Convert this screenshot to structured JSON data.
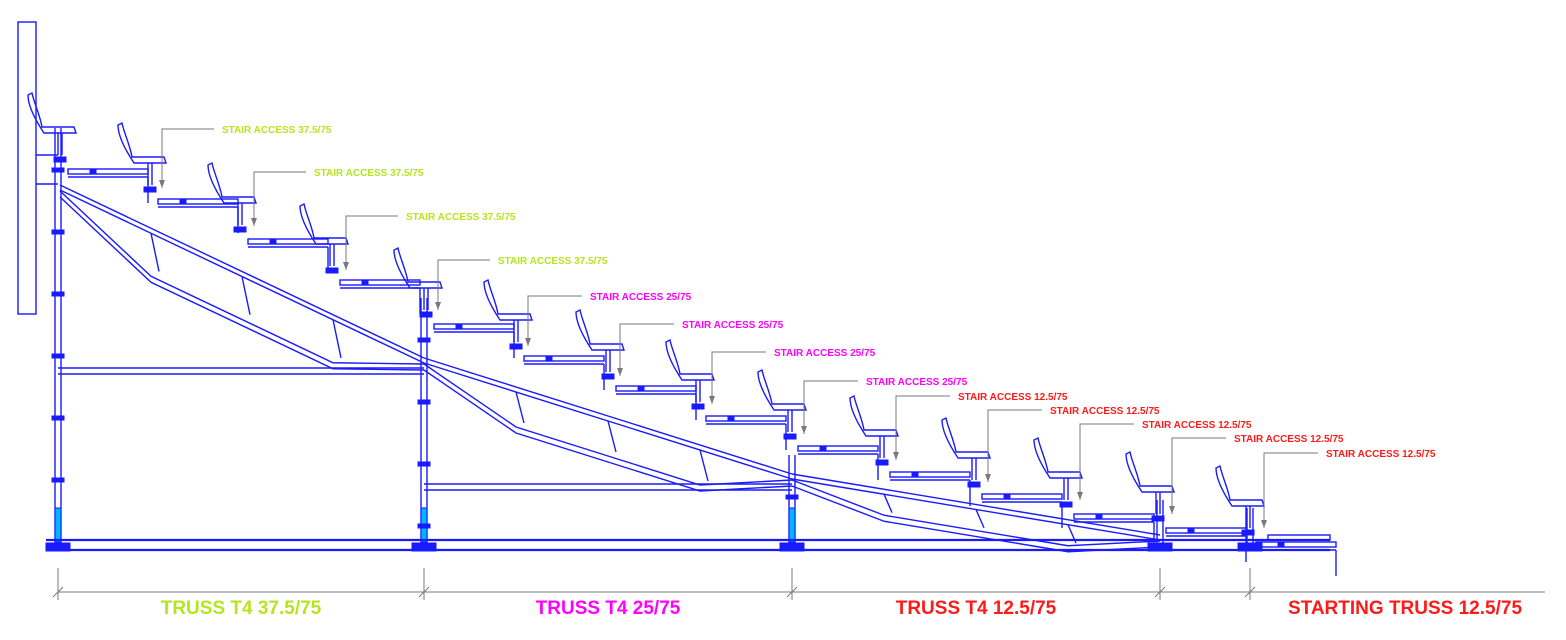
{
  "colors": {
    "green": "#b5e61d",
    "magenta": "#ff00ff",
    "red": "#ff1a1a",
    "structure": "#1a1aff",
    "dimension": "#7a7a7a"
  },
  "callouts": [
    {
      "text": "STAIR ACCESS 37.5/75",
      "color": "green"
    },
    {
      "text": "STAIR ACCESS 37.5/75",
      "color": "green"
    },
    {
      "text": "STAIR ACCESS 37.5/75",
      "color": "green"
    },
    {
      "text": "STAIR ACCESS 37.5/75",
      "color": "green"
    },
    {
      "text": "STAIR ACCESS 25/75",
      "color": "magenta"
    },
    {
      "text": "STAIR ACCESS 25/75",
      "color": "magenta"
    },
    {
      "text": "STAIR ACCESS 25/75",
      "color": "magenta"
    },
    {
      "text": "STAIR ACCESS 25/75",
      "color": "magenta"
    },
    {
      "text": "STAIR ACCESS 12.5/75",
      "color": "red"
    },
    {
      "text": "STAIR ACCESS 12.5/75",
      "color": "red"
    },
    {
      "text": "STAIR ACCESS 12.5/75",
      "color": "red"
    },
    {
      "text": "STAIR ACCESS 12.5/75",
      "color": "red"
    },
    {
      "text": "STAIR ACCESS 12.5/75",
      "color": "red"
    }
  ],
  "truss_labels": [
    {
      "text": "TRUSS T4 37.5/75",
      "color": "green"
    },
    {
      "text": "TRUSS T4 25/75",
      "color": "magenta"
    },
    {
      "text": "TRUSS T4 12.5/75",
      "color": "red"
    },
    {
      "text": "STARTING TRUSS 12.5/75",
      "color": "red"
    }
  ]
}
